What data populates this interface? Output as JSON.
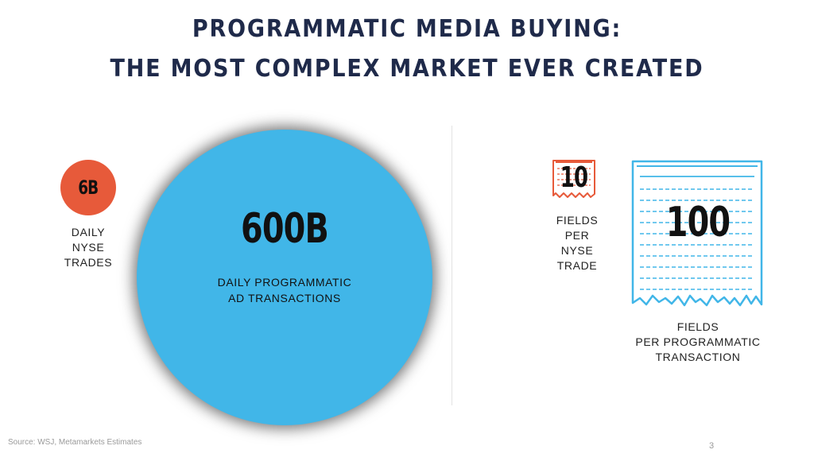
{
  "title": {
    "line1": "PROGRAMMATIC MEDIA BUYING:",
    "line2": "THE MOST COMPLEX MARKET EVER CREATED"
  },
  "left": {
    "small_value": "6B",
    "small_label": [
      "DAILY",
      "NYSE",
      "TRADES"
    ],
    "big_value": "600B",
    "big_label": [
      "DAILY PROGRAMMATIC",
      "AD TRANSACTIONS"
    ]
  },
  "right": {
    "small_value": "10",
    "small_label": [
      "FIELDS",
      "PER",
      "NYSE",
      "TRADE"
    ],
    "big_value": "100",
    "big_label": [
      "FIELDS",
      "PER PROGRAMMATIC",
      "TRANSACTION"
    ]
  },
  "footer": {
    "source": "Source: WSJ, Metamarkets Estimates",
    "page_number": "3"
  },
  "colors": {
    "title": "#1f2a4a",
    "nyse_accent": "#e75a3a",
    "programmatic_accent": "#41b6e8"
  }
}
